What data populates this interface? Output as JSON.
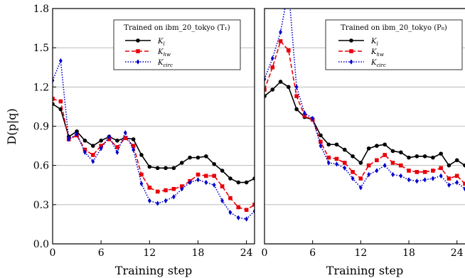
{
  "figure": {
    "ylabel": "D(p|q)",
    "xlabel": "Training step"
  },
  "chart_data": [
    {
      "type": "line",
      "panel": "left",
      "legend_title": "Trained on ibm_20_tokyo (T₁)",
      "legend_placement": "top-right",
      "ylabel": "D(p|q)",
      "xlabel": "Training step",
      "xlim": [
        0,
        25
      ],
      "ylim": [
        0.0,
        1.8
      ],
      "xticks": [
        "0",
        "6",
        "12",
        "18",
        "24"
      ],
      "yticks": [
        "0.0",
        "0.3",
        "0.6",
        "0.9",
        "1.2",
        "1.5",
        "1.8"
      ],
      "grid": "horizontal",
      "x": [
        0,
        1,
        2,
        3,
        4,
        5,
        6,
        7,
        8,
        9,
        10,
        11,
        12,
        13,
        14,
        15,
        16,
        17,
        18,
        19,
        20,
        21,
        22,
        23,
        24,
        25
      ],
      "series": [
        {
          "name": "K_l",
          "color": "#000000",
          "marker": "circle",
          "linestyle": "solid",
          "values": [
            1.07,
            1.03,
            0.82,
            0.86,
            0.79,
            0.75,
            0.79,
            0.82,
            0.79,
            0.81,
            0.8,
            0.68,
            0.59,
            0.58,
            0.58,
            0.58,
            0.62,
            0.66,
            0.66,
            0.67,
            0.61,
            0.56,
            0.5,
            0.47,
            0.47,
            0.5
          ]
        },
        {
          "name": "K_hw",
          "color": "#e8000b",
          "marker": "square",
          "linestyle": "dashed",
          "values": [
            1.11,
            1.09,
            0.8,
            0.83,
            0.72,
            0.68,
            0.75,
            0.8,
            0.74,
            0.81,
            0.75,
            0.53,
            0.43,
            0.4,
            0.41,
            0.42,
            0.44,
            0.48,
            0.53,
            0.52,
            0.52,
            0.44,
            0.35,
            0.28,
            0.26,
            0.3
          ]
        },
        {
          "name": "K_circ",
          "color": "#0000cc",
          "marker": "diamond",
          "linestyle": "dotted",
          "values": [
            1.25,
            1.4,
            0.8,
            0.84,
            0.7,
            0.63,
            0.73,
            0.82,
            0.7,
            0.85,
            0.72,
            0.46,
            0.33,
            0.31,
            0.33,
            0.36,
            0.42,
            0.47,
            0.49,
            0.47,
            0.45,
            0.33,
            0.24,
            0.2,
            0.19,
            0.25
          ]
        }
      ]
    },
    {
      "type": "line",
      "panel": "right",
      "legend_title": "Trained on ibm_20_tokyo (P₈)",
      "legend_placement": "top-right",
      "xlabel": "Training step",
      "xlim": [
        0,
        25
      ],
      "ylim": [
        0.0,
        1.8
      ],
      "xticks": [
        "0",
        "6",
        "12",
        "18",
        "24"
      ],
      "grid": "horizontal",
      "x": [
        0,
        1,
        2,
        3,
        4,
        5,
        6,
        7,
        8,
        9,
        10,
        11,
        12,
        13,
        14,
        15,
        16,
        17,
        18,
        19,
        20,
        21,
        22,
        23,
        24,
        25
      ],
      "series": [
        {
          "name": "K_l",
          "color": "#000000",
          "marker": "circle",
          "linestyle": "solid",
          "values": [
            1.13,
            1.18,
            1.24,
            1.2,
            1.03,
            0.97,
            0.95,
            0.83,
            0.76,
            0.76,
            0.72,
            0.67,
            0.62,
            0.73,
            0.75,
            0.76,
            0.71,
            0.7,
            0.66,
            0.67,
            0.67,
            0.66,
            0.69,
            0.6,
            0.64,
            0.6
          ]
        },
        {
          "name": "K_hw",
          "color": "#e8000b",
          "marker": "square",
          "linestyle": "dashed",
          "values": [
            1.18,
            1.35,
            1.55,
            1.48,
            1.13,
            0.98,
            0.95,
            0.78,
            0.66,
            0.65,
            0.62,
            0.55,
            0.5,
            0.6,
            0.64,
            0.68,
            0.62,
            0.6,
            0.56,
            0.55,
            0.55,
            0.56,
            0.58,
            0.5,
            0.52,
            0.46
          ]
        },
        {
          "name": "K_circ",
          "color": "#0000cc",
          "marker": "diamond",
          "linestyle": "dotted",
          "values": [
            1.26,
            1.42,
            1.62,
            1.95,
            1.2,
            1.0,
            0.96,
            0.75,
            0.62,
            0.61,
            0.58,
            0.5,
            0.43,
            0.53,
            0.56,
            0.6,
            0.53,
            0.52,
            0.49,
            0.48,
            0.49,
            0.5,
            0.52,
            0.45,
            0.47,
            0.42
          ]
        }
      ]
    }
  ]
}
